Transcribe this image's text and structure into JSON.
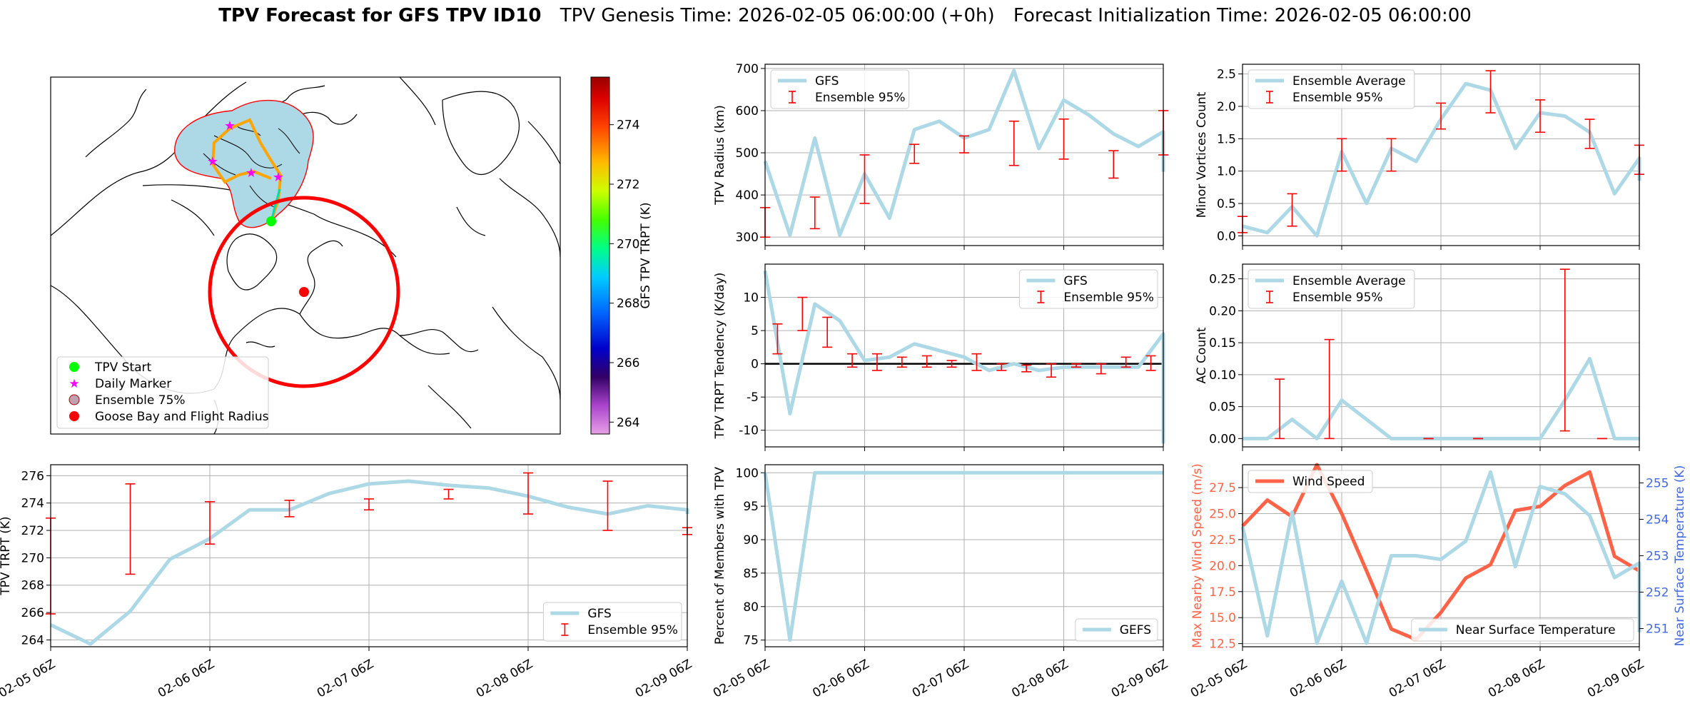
{
  "title": {
    "bold": "TPV Forecast for GFS TPV ID10",
    "genesis": "TPV Genesis Time: 2026-02-05 06:00:00 (+0h)",
    "init": "Forecast Initialization Time: 2026-02-05 06:00:00"
  },
  "colors": {
    "gfs": "#add8e6",
    "error": "#ff0000",
    "wind": "#ff6347",
    "temp_axis": "#4169e1",
    "ensemble_fill": "#add8e6",
    "track": "#ffa500"
  },
  "time_ticks": [
    "02-05 06Z",
    "02-06 06Z",
    "02-07 06Z",
    "02-08 06Z",
    "02-09 06Z"
  ],
  "map": {
    "colorbar_label": "GFS TPV TRPT (K)",
    "colorbar_ticks": [
      264,
      266,
      268,
      270,
      272,
      274
    ],
    "colorbar_range": [
      263.6,
      275.6
    ],
    "legend": [
      {
        "label": "TPV Start",
        "marker": "circle",
        "color": "#00ff00"
      },
      {
        "label": "Daily Marker",
        "marker": "star",
        "color": "#ff00ff"
      },
      {
        "label": "Ensemble 75%",
        "marker": "circle",
        "color": "#c0a0b0"
      },
      {
        "label": "Goose Bay and Flight Radius",
        "marker": "circle",
        "color": "#ff0000"
      }
    ]
  },
  "chart_data": [
    {
      "id": "radius",
      "type": "line",
      "ylabel": "TPV Radius (km)",
      "xlim": [
        0,
        16
      ],
      "ylim": [
        280,
        710
      ],
      "yticks": [
        300,
        400,
        500,
        600,
        700
      ],
      "legend": [
        "GFS",
        "Ensemble 95%"
      ],
      "legend_loc": "upper-left",
      "series": [
        {
          "name": "GFS",
          "values": [
            480,
            305,
            535,
            305,
            450,
            345,
            555,
            575,
            535,
            555,
            695,
            510,
            625,
            590,
            545,
            515,
            550,
            455
          ]
        }
      ],
      "errorbars": [
        [
          0,
          300,
          370
        ],
        [
          2,
          320,
          395
        ],
        [
          4,
          380,
          495
        ],
        [
          6,
          475,
          520
        ],
        [
          8,
          500,
          540
        ],
        [
          10,
          470,
          575
        ],
        [
          12,
          485,
          580
        ],
        [
          14,
          440,
          505
        ],
        [
          16,
          495,
          600
        ]
      ]
    },
    {
      "id": "minor",
      "type": "line",
      "ylabel": "Minor Vortices Count",
      "xlim": [
        0,
        16
      ],
      "ylim": [
        -0.15,
        2.65
      ],
      "yticks": [
        0.0,
        0.5,
        1.0,
        1.5,
        2.0,
        2.5
      ],
      "ytick_fmt": 1,
      "legend": [
        "Ensemble Average",
        "Ensemble 95%"
      ],
      "legend_loc": "upper-left",
      "series": [
        {
          "name": "Ensemble Average",
          "values": [
            0.15,
            0.05,
            0.45,
            0.0,
            1.3,
            0.5,
            1.35,
            1.15,
            1.8,
            2.35,
            2.25,
            1.35,
            1.9,
            1.85,
            1.6,
            0.65,
            1.2,
            0.85
          ]
        }
      ],
      "errorbars": [
        [
          0,
          0.05,
          0.3
        ],
        [
          2,
          0.15,
          0.65
        ],
        [
          4,
          1.0,
          1.5
        ],
        [
          6,
          1.0,
          1.5
        ],
        [
          8,
          1.65,
          2.05
        ],
        [
          10,
          1.9,
          2.55
        ],
        [
          12,
          1.6,
          2.1
        ],
        [
          14,
          1.35,
          1.8
        ],
        [
          16,
          0.95,
          1.4
        ]
      ]
    },
    {
      "id": "tendency",
      "type": "line",
      "ylabel": "TPV TRPT Tendency (K/day)",
      "xlim": [
        0,
        16
      ],
      "ylim": [
        -12.5,
        15
      ],
      "yticks": [
        -10,
        -5,
        0,
        5,
        10
      ],
      "legend": [
        "GFS",
        "Ensemble 95%"
      ],
      "legend_loc": "upper-right",
      "zero_line": true,
      "series": [
        {
          "name": "GFS",
          "values": [
            14,
            -7.5,
            9,
            6.5,
            0.5,
            1,
            3,
            2,
            1,
            -1,
            0,
            -1,
            -0.5,
            -0.5,
            -0.5,
            -0.5,
            4.5,
            -12
          ]
        }
      ],
      "errorbars": [
        [
          0.5,
          1.5,
          6
        ],
        [
          1.5,
          5,
          10
        ],
        [
          2.5,
          2.5,
          7
        ],
        [
          3.5,
          -0.5,
          1.5
        ],
        [
          4.5,
          -1,
          1.5
        ],
        [
          5.5,
          -0.5,
          1
        ],
        [
          6.5,
          -0.5,
          1.2
        ],
        [
          7.5,
          -0.5,
          0.5
        ],
        [
          8.5,
          -1,
          1.5
        ],
        [
          9.5,
          -1,
          0
        ],
        [
          10.5,
          -1.2,
          -0.2
        ],
        [
          11.5,
          -2,
          0
        ],
        [
          12.5,
          -0.5,
          0
        ],
        [
          13.5,
          -1.5,
          0
        ],
        [
          14.5,
          -0.5,
          1
        ],
        [
          15.5,
          -1,
          1.2
        ]
      ]
    },
    {
      "id": "ac",
      "type": "line",
      "ylabel": "AC Count",
      "xlim": [
        0,
        16
      ],
      "ylim": [
        -0.013,
        0.273
      ],
      "yticks": [
        0.0,
        0.05,
        0.1,
        0.15,
        0.2,
        0.25
      ],
      "ytick_fmt": 2,
      "legend": [
        "Ensemble Average",
        "Ensemble 95%"
      ],
      "legend_loc": "upper-left",
      "series": [
        {
          "name": "Ensemble Average",
          "values": [
            0.0,
            0.0,
            0.03,
            0.0,
            0.06,
            0.03,
            0.0,
            0.0,
            0.0,
            0.0,
            0.0,
            0.0,
            0.0,
            0.06,
            0.125,
            0.0,
            0.0,
            0.0
          ]
        }
      ],
      "errorbars": [
        [
          1.5,
          0.0,
          0.093
        ],
        [
          3.5,
          0.0,
          0.155
        ],
        [
          7.5,
          0.0,
          0.0
        ],
        [
          9.5,
          0.0,
          0.0
        ],
        [
          13,
          0.012,
          0.265
        ],
        [
          14.5,
          0.0,
          0.0
        ]
      ]
    },
    {
      "id": "trpt",
      "type": "line",
      "ylabel": "TPV TRPT (K)",
      "xlim": [
        0,
        16
      ],
      "ylim": [
        263.5,
        276.8
      ],
      "yticks": [
        264,
        266,
        268,
        270,
        272,
        274,
        276
      ],
      "legend": [
        "GFS",
        "Ensemble 95%"
      ],
      "legend_loc": "lower-right",
      "series": [
        {
          "name": "GFS",
          "values": [
            265.1,
            263.7,
            266.1,
            269.9,
            271.4,
            273.5,
            273.5,
            274.7,
            275.4,
            275.6,
            275.3,
            275.1,
            274.5,
            273.7,
            273.2,
            273.8,
            273.5,
            273.2
          ]
        }
      ],
      "errorbars": [
        [
          0,
          265.9,
          272.9
        ],
        [
          2,
          268.8,
          275.4
        ],
        [
          4,
          271.0,
          274.1
        ],
        [
          6,
          273.0,
          274.2
        ],
        [
          8,
          273.5,
          274.3
        ],
        [
          10,
          274.3,
          275.0
        ],
        [
          12,
          273.2,
          276.2
        ],
        [
          14,
          272.0,
          275.6
        ],
        [
          16,
          271.7,
          272.2
        ]
      ]
    },
    {
      "id": "percent",
      "type": "line",
      "ylabel": "Percent of Members with TPV",
      "xlim": [
        0,
        16
      ],
      "ylim": [
        74,
        101.2
      ],
      "yticks": [
        75,
        80,
        85,
        90,
        95,
        100
      ],
      "legend": [
        "GEFS"
      ],
      "legend_loc": "lower-right",
      "series": [
        {
          "name": "GEFS",
          "values": [
            100,
            75,
            100,
            100,
            100,
            100,
            100,
            100,
            100,
            100,
            100,
            100,
            100,
            100,
            100,
            100,
            100,
            100
          ]
        }
      ],
      "errorbars": []
    },
    {
      "id": "wind_temp",
      "type": "line",
      "ylabel": "Max Nearby Wind Speed (m/s)",
      "ylabel_right": "Near Surface Temperature (K)",
      "xlim": [
        0,
        16
      ],
      "ylim": [
        12.2,
        29.7
      ],
      "ylim_right": [
        250.5,
        255.5
      ],
      "yticks": [
        12.5,
        15.0,
        17.5,
        20.0,
        22.5,
        25.0,
        27.5
      ],
      "ytick_fmt": 1,
      "yticks_right": [
        251,
        252,
        253,
        254,
        255
      ],
      "legend": [
        "Wind Speed"
      ],
      "legend_loc": "upper-left",
      "legend_right": [
        "Near Surface Temperature"
      ],
      "legend_right_loc": "lower-right",
      "series": [
        {
          "name": "Wind Speed",
          "axis": "left",
          "values": [
            23.8,
            26.3,
            24.7,
            29.7,
            25,
            19.5,
            13.9,
            12.9,
            15.5,
            18.8,
            20.1,
            25.3,
            25.7,
            27.7,
            29,
            20.9,
            19.5,
            15.5
          ]
        },
        {
          "name": "Near Surface Temperature",
          "axis": "right",
          "values": [
            253.8,
            250.8,
            254.2,
            250.6,
            252.3,
            250.6,
            253,
            253,
            252.9,
            253.4,
            255.3,
            252.7,
            254.9,
            254.7,
            254.1,
            252.4,
            252.8,
            250.9
          ]
        }
      ],
      "errorbars": []
    }
  ]
}
